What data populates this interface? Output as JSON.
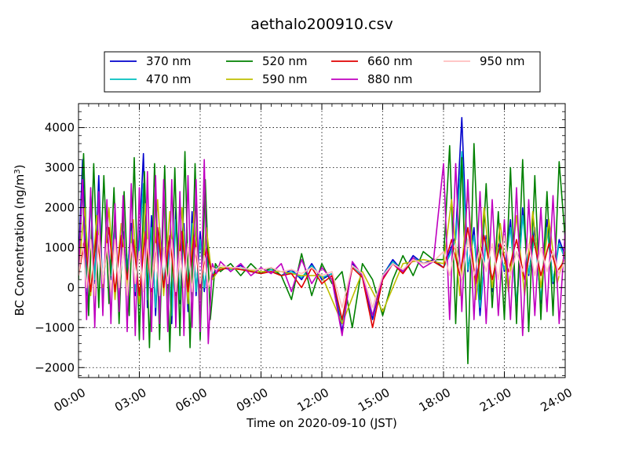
{
  "chart_data": {
    "type": "line",
    "title": "aethalo200910.csv",
    "xlabel": "Time on 2020-09-10 (JST)",
    "ylabel": "BC Concentration (ng/m",
    "ylabel_sup": "3",
    "ylabel_suffix": ")",
    "xlim": [
      0,
      24
    ],
    "ylim": [
      -2250,
      4600
    ],
    "grid": true,
    "legend_position": "top",
    "x_ticks": [
      {
        "value": 0,
        "label": "00:00"
      },
      {
        "value": 3,
        "label": "03:00"
      },
      {
        "value": 6,
        "label": "06:00"
      },
      {
        "value": 9,
        "label": "09:00"
      },
      {
        "value": 12,
        "label": "12:00"
      },
      {
        "value": 15,
        "label": "15:00"
      },
      {
        "value": 18,
        "label": "18:00"
      },
      {
        "value": 21,
        "label": "21:00"
      },
      {
        "value": 24,
        "label": "24:00"
      }
    ],
    "y_ticks": [
      {
        "value": -2000,
        "label": "−2000"
      },
      {
        "value": -1000,
        "label": "−1000"
      },
      {
        "value": 0,
        "label": "0"
      },
      {
        "value": 1000,
        "label": "1000"
      },
      {
        "value": 2000,
        "label": "2000"
      },
      {
        "value": 3000,
        "label": "3000"
      },
      {
        "value": 4000,
        "label": "4000"
      }
    ],
    "series": [
      {
        "name": "370 nm",
        "color": "#0000cc",
        "id": "370",
        "x": [
          0,
          0.2,
          0.4,
          0.6,
          0.8,
          1.0,
          1.2,
          1.4,
          1.6,
          1.8,
          2.0,
          2.2,
          2.4,
          2.6,
          2.8,
          3.0,
          3.2,
          3.4,
          3.6,
          3.8,
          4.0,
          4.2,
          4.4,
          4.6,
          4.8,
          5.0,
          5.2,
          5.4,
          5.6,
          5.8,
          6.0,
          6.2,
          6.4,
          6.6,
          6.8,
          7.0,
          7.5,
          8,
          8.5,
          9,
          9.5,
          10,
          10.5,
          11,
          11.5,
          12,
          12.5,
          13,
          13.5,
          14,
          14.5,
          15,
          15.5,
          16,
          16.5,
          17,
          17.5,
          18,
          18.3,
          18.6,
          18.9,
          19.2,
          19.5,
          19.8,
          20.1,
          20.4,
          20.7,
          21,
          21.3,
          21.6,
          21.9,
          22.2,
          22.5,
          22.8,
          23.1,
          23.4,
          23.7,
          24
        ],
        "y": [
          600,
          3200,
          -200,
          2400,
          100,
          2800,
          -300,
          1500,
          200,
          1800,
          -600,
          1400,
          300,
          1600,
          -200,
          1200,
          3350,
          -500,
          1800,
          -700,
          1500,
          0,
          1200,
          -900,
          2000,
          -400,
          1600,
          -600,
          1900,
          -200,
          1400,
          -100,
          900,
          200,
          500,
          500,
          450,
          550,
          400,
          350,
          500,
          300,
          450,
          200,
          600,
          200,
          350,
          -1100,
          600,
          300,
          -800,
          300,
          700,
          400,
          800,
          600,
          700,
          500,
          900,
          1300,
          4250,
          400,
          1500,
          -700,
          1300,
          -100,
          1100,
          400,
          1700,
          -600,
          2000,
          300,
          1500,
          -400,
          1700,
          100,
          1200,
          800
        ]
      },
      {
        "name": "470 nm",
        "color": "#00bfbf",
        "id": "470",
        "x": [
          0,
          0.2,
          0.4,
          0.6,
          0.8,
          1.0,
          1.2,
          1.4,
          1.6,
          1.8,
          2.0,
          2.2,
          2.4,
          2.6,
          2.8,
          3.0,
          3.2,
          3.4,
          3.6,
          3.8,
          4.0,
          4.2,
          4.4,
          4.6,
          4.8,
          5.0,
          5.2,
          5.4,
          5.6,
          5.8,
          6.0,
          6.2,
          6.4,
          6.6,
          6.8,
          7.0,
          7.5,
          8,
          8.5,
          9,
          9.5,
          10,
          10.5,
          11,
          11.5,
          12,
          12.5,
          13,
          13.5,
          14,
          14.5,
          15,
          15.5,
          16,
          16.5,
          17,
          17.5,
          18,
          18.3,
          18.6,
          18.9,
          19.2,
          19.5,
          19.8,
          20.1,
          20.4,
          20.7,
          21,
          21.3,
          21.6,
          21.9,
          22.2,
          22.5,
          22.8,
          23.1,
          23.4,
          23.7,
          24
        ],
        "y": [
          500,
          2500,
          -100,
          2100,
          200,
          2300,
          -200,
          1300,
          300,
          1500,
          -400,
          1200,
          400,
          1400,
          -100,
          1000,
          2600,
          -300,
          1500,
          -500,
          1300,
          100,
          1000,
          -700,
          1700,
          -300,
          1400,
          -400,
          1600,
          -100,
          1200,
          0,
          800,
          300,
          500,
          500,
          450,
          500,
          400,
          350,
          450,
          300,
          400,
          250,
          550,
          250,
          350,
          -900,
          550,
          300,
          -700,
          300,
          650,
          400,
          750,
          600,
          650,
          500,
          800,
          1200,
          3400,
          450,
          1300,
          -500,
          1200,
          0,
          1000,
          450,
          1500,
          -400,
          1800,
          350,
          1300,
          -300,
          1500,
          150,
          1100,
          700
        ]
      },
      {
        "name": "520 nm",
        "color": "#008000",
        "id": "520",
        "x": [
          0,
          0.25,
          0.5,
          0.75,
          1.0,
          1.25,
          1.5,
          1.75,
          2.0,
          2.25,
          2.5,
          2.75,
          3.0,
          3.25,
          3.5,
          3.75,
          4.0,
          4.25,
          4.5,
          4.75,
          5.0,
          5.25,
          5.5,
          5.75,
          6.0,
          6.25,
          6.5,
          6.75,
          7.0,
          7.5,
          8,
          8.5,
          9,
          9.5,
          10,
          10.5,
          11,
          11.5,
          12,
          12.5,
          13,
          13.5,
          14,
          14.5,
          15,
          15.5,
          16,
          16.5,
          17,
          17.5,
          18,
          18.3,
          18.6,
          18.9,
          19.2,
          19.5,
          19.8,
          20.1,
          20.4,
          20.7,
          21,
          21.3,
          21.6,
          21.9,
          22.2,
          22.5,
          22.8,
          23.1,
          23.4,
          23.7,
          24
        ],
        "y": [
          200,
          3350,
          -700,
          3100,
          -500,
          2800,
          -400,
          2500,
          -900,
          2400,
          -700,
          3250,
          -1300,
          2900,
          -1500,
          3100,
          -1300,
          3050,
          -1600,
          3000,
          -1200,
          3400,
          -1500,
          3100,
          -1300,
          2700,
          -800,
          600,
          400,
          600,
          300,
          600,
          350,
          500,
          300,
          -300,
          850,
          -200,
          600,
          100,
          400,
          -1000,
          600,
          200,
          -700,
          200,
          800,
          300,
          900,
          700,
          700,
          3550,
          -900,
          3250,
          -1900,
          3600,
          -300,
          2600,
          -500,
          1900,
          -800,
          3000,
          -900,
          3200,
          -1100,
          2800,
          -800,
          2400,
          -700,
          3150,
          1200
        ]
      },
      {
        "name": "590 nm",
        "color": "#bfbf00",
        "id": "590",
        "x": [
          0,
          0.3,
          0.6,
          0.9,
          1.2,
          1.5,
          1.8,
          2.1,
          2.4,
          2.7,
          3.0,
          3.3,
          3.6,
          3.9,
          4.2,
          4.5,
          4.8,
          5.1,
          5.4,
          5.7,
          6.0,
          6.3,
          6.6,
          7.0,
          8,
          9,
          10,
          11,
          12,
          13,
          14,
          15,
          16,
          17,
          18,
          18.4,
          18.8,
          19.2,
          19.6,
          20.0,
          20.4,
          20.8,
          21.2,
          21.6,
          22.0,
          22.4,
          22.8,
          23.2,
          23.6,
          24
        ],
        "y": [
          400,
          2000,
          -200,
          1800,
          0,
          2000,
          -300,
          1600,
          0,
          1700,
          -400,
          2100,
          -300,
          2200,
          -200,
          1900,
          -500,
          2000,
          -400,
          1900,
          -300,
          1500,
          200,
          500,
          450,
          400,
          400,
          300,
          300,
          -900,
          400,
          -600,
          600,
          700,
          600,
          2200,
          -200,
          2400,
          -300,
          2000,
          0,
          1600,
          -100,
          1800,
          -200,
          1900,
          0,
          1700,
          100,
          900
        ]
      },
      {
        "name": "660 nm",
        "color": "#e00000",
        "id": "660",
        "x": [
          0,
          0.3,
          0.6,
          0.9,
          1.2,
          1.5,
          1.8,
          2.1,
          2.4,
          2.7,
          3.0,
          3.3,
          3.6,
          3.9,
          4.2,
          4.5,
          4.8,
          5.1,
          5.4,
          5.7,
          6.0,
          6.3,
          6.6,
          7.0,
          7.5,
          8,
          8.5,
          9,
          9.5,
          10,
          10.5,
          11,
          11.5,
          12,
          12.5,
          13,
          13.5,
          14,
          14.5,
          15,
          15.5,
          16,
          16.5,
          17,
          17.5,
          18,
          18.4,
          18.8,
          19.2,
          19.6,
          20.0,
          20.4,
          20.8,
          21.2,
          21.6,
          22.0,
          22.4,
          22.8,
          23.2,
          23.6,
          24
        ],
        "y": [
          300,
          1200,
          -100,
          1400,
          100,
          1500,
          -100,
          1300,
          200,
          1200,
          -200,
          1400,
          -100,
          1500,
          0,
          1300,
          -200,
          1400,
          -100,
          1300,
          0,
          1000,
          300,
          450,
          500,
          450,
          400,
          350,
          400,
          300,
          350,
          0,
          500,
          100,
          300,
          -800,
          500,
          250,
          -1000,
          200,
          600,
          350,
          700,
          600,
          650,
          500,
          1200,
          300,
          1500,
          100,
          1300,
          200,
          1100,
          400,
          1200,
          200,
          1300,
          300,
          1100,
          400,
          700
        ]
      },
      {
        "name": "880 nm",
        "color": "#bf00bf",
        "id": "880",
        "x": [
          0,
          0.2,
          0.4,
          0.6,
          0.8,
          1.0,
          1.2,
          1.4,
          1.6,
          1.8,
          2.0,
          2.2,
          2.4,
          2.6,
          2.8,
          3.0,
          3.2,
          3.4,
          3.6,
          3.8,
          4.0,
          4.2,
          4.4,
          4.6,
          4.8,
          5.0,
          5.2,
          5.4,
          5.6,
          5.8,
          6.0,
          6.2,
          6.4,
          6.6,
          6.8,
          7.0,
          7.5,
          8,
          8.5,
          9,
          9.5,
          10,
          10.5,
          11,
          11.5,
          12,
          12.5,
          13,
          13.5,
          14,
          14.5,
          15,
          15.5,
          16,
          16.5,
          17,
          17.5,
          18,
          18.3,
          18.6,
          18.9,
          19.2,
          19.5,
          19.8,
          20.1,
          20.4,
          20.7,
          21,
          21.3,
          21.6,
          21.9,
          22.2,
          22.5,
          22.8,
          23.1,
          23.4,
          23.7,
          24
        ],
        "y": [
          400,
          2700,
          -800,
          2500,
          -1000,
          2400,
          -700,
          2200,
          -900,
          2100,
          -600,
          2300,
          -1100,
          2600,
          -1200,
          2500,
          -1300,
          2900,
          -1100,
          2800,
          -900,
          2700,
          -1100,
          2700,
          -1000,
          2400,
          -1200,
          2800,
          -1000,
          2700,
          -1100,
          3200,
          -1400,
          600,
          350,
          650,
          400,
          600,
          300,
          500,
          350,
          600,
          -100,
          700,
          100,
          500,
          200,
          -1200,
          650,
          300,
          -700,
          250,
          600,
          400,
          750,
          500,
          650,
          3100,
          -800,
          3100,
          -600,
          2700,
          -800,
          2400,
          -900,
          2200,
          -700,
          1700,
          -800,
          2500,
          -1200,
          2200,
          -700,
          2000,
          -600,
          2300,
          -900,
          1400
        ]
      },
      {
        "name": "950 nm",
        "color": "#ffbfbf",
        "id": "950",
        "x": [
          0,
          0.2,
          0.4,
          0.6,
          0.8,
          1.0,
          1.2,
          1.4,
          1.6,
          1.8,
          2.0,
          2.2,
          2.4,
          2.6,
          2.8,
          3.0,
          3.2,
          3.4,
          3.6,
          3.8,
          4.0,
          4.2,
          4.4,
          4.6,
          4.8,
          5.0,
          5.2,
          5.4,
          5.6,
          5.8,
          6.0,
          6.2,
          6.4,
          6.6,
          6.8,
          7.0,
          7.5,
          8,
          8.5,
          9,
          9.5,
          10,
          10.5,
          11,
          11.5,
          12,
          12.5,
          13,
          13.5,
          14,
          14.5,
          15,
          15.5,
          16,
          16.5,
          17,
          17.5,
          18,
          18.3,
          18.6,
          18.9,
          19.2,
          19.5,
          19.8,
          20.1,
          20.4,
          20.7,
          21,
          21.3,
          21.6,
          21.9,
          22.2,
          22.5,
          22.8,
          23.1,
          23.4,
          23.7,
          24
        ],
        "y": [
          300,
          1100,
          0,
          1200,
          -200,
          1300,
          100,
          1100,
          -100,
          1200,
          0,
          1000,
          -200,
          1100,
          100,
          900,
          -100,
          1200,
          0,
          1100,
          -200,
          1000,
          100,
          1200,
          -100,
          900,
          0,
          1100,
          -100,
          1000,
          100,
          800,
          0,
          500,
          450,
          550,
          500,
          500,
          450,
          450,
          500,
          400,
          450,
          350,
          500,
          300,
          400,
          -500,
          550,
          350,
          -500,
          300,
          600,
          450,
          700,
          600,
          650,
          900,
          300,
          1100,
          200,
          1200,
          300,
          1000,
          400,
          1100,
          200,
          1300,
          300,
          900,
          400,
          1100,
          300,
          1000,
          400,
          900,
          300,
          700
        ]
      }
    ]
  }
}
